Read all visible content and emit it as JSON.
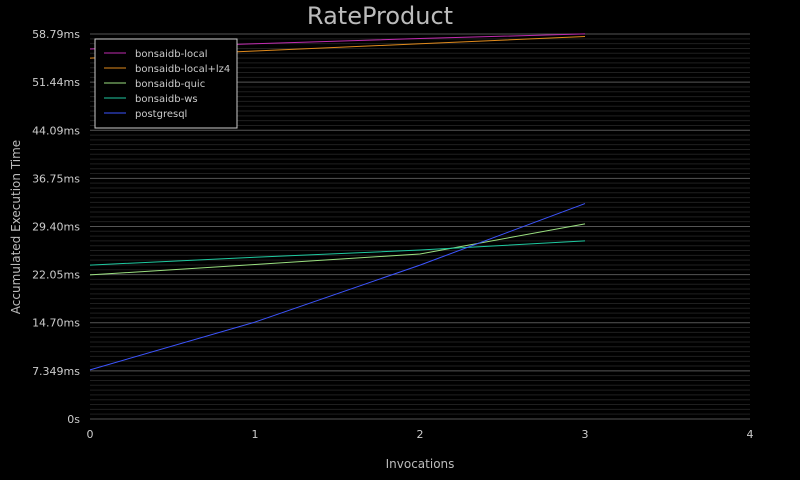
{
  "chart_data": {
    "type": "line",
    "title": "RateProduct",
    "xlabel": "Invocations",
    "ylabel": "Accumulated Execution Time",
    "xlim": [
      0,
      4
    ],
    "ylim": [
      0,
      58.79
    ],
    "x_ticks": [
      "0",
      "1",
      "2",
      "3",
      "4"
    ],
    "y_ticks": [
      {
        "value": 0,
        "label": "0s"
      },
      {
        "value": 7.349,
        "label": "7.349ms"
      },
      {
        "value": 14.7,
        "label": "14.70ms"
      },
      {
        "value": 22.05,
        "label": "22.05ms"
      },
      {
        "value": 29.4,
        "label": "29.40ms"
      },
      {
        "value": 36.75,
        "label": "36.75ms"
      },
      {
        "value": 44.09,
        "label": "44.09ms"
      },
      {
        "value": 51.44,
        "label": "51.44ms"
      },
      {
        "value": 58.79,
        "label": "58.79ms"
      }
    ],
    "legend_position": "top-left",
    "grid": true,
    "x": [
      0,
      1,
      2,
      3
    ],
    "series": [
      {
        "name": "bonsaidb-local",
        "color": "#c02cb0",
        "values": [
          56.5,
          57.3,
          58.1,
          58.8
        ]
      },
      {
        "name": "bonsaidb-local+lz4",
        "color": "#e08a1c",
        "values": [
          55.1,
          56.2,
          57.3,
          58.4
        ]
      },
      {
        "name": "bonsaidb-quic",
        "color": "#9be080",
        "values": [
          22.0,
          23.6,
          25.2,
          29.8
        ]
      },
      {
        "name": "bonsaidb-ws",
        "color": "#1fc9a0",
        "values": [
          23.5,
          24.7,
          25.8,
          27.2
        ]
      },
      {
        "name": "postgresql",
        "color": "#3d55ff",
        "values": [
          7.5,
          14.8,
          23.5,
          32.9
        ]
      }
    ]
  }
}
